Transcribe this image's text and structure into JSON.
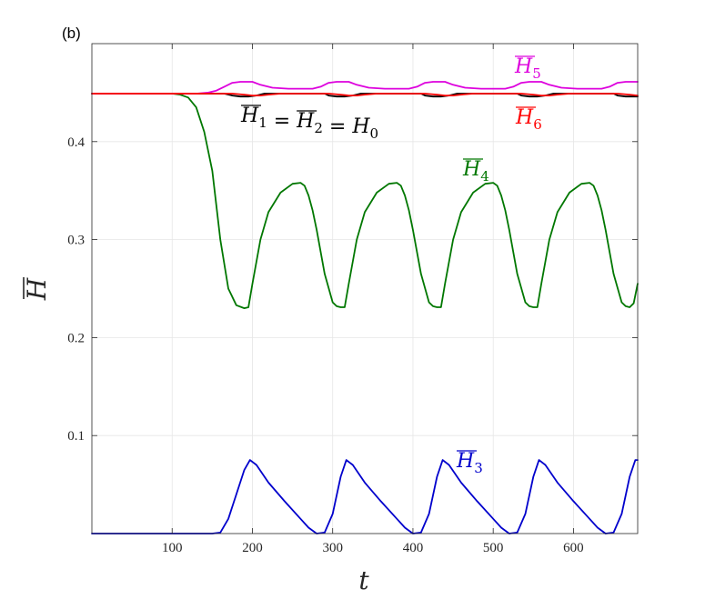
{
  "chart_data": {
    "type": "line",
    "panel_label": "(b)",
    "xlabel": "t",
    "ylabel": "H",
    "ylabel_overline": true,
    "xlim": [
      0,
      680
    ],
    "ylim": [
      0,
      0.5
    ],
    "xticks": [
      100,
      200,
      300,
      400,
      500,
      600
    ],
    "yticks": [
      0.1,
      0.2,
      0.3,
      0.4
    ],
    "xtick_labels": [
      "100",
      "200",
      "300",
      "400",
      "500",
      "600"
    ],
    "ytick_labels": [
      "0.1",
      "0.2",
      "0.3",
      "0.4"
    ],
    "grid": true,
    "series": [
      {
        "label": "H1 = H2 = H0",
        "label_parts": [
          "H",
          "1",
          " = ",
          "H",
          "2",
          " = ",
          "H",
          "0"
        ],
        "color": "#000000",
        "x": [
          0,
          165,
          175,
          185,
          195,
          205,
          215,
          230,
          250,
          270,
          290,
          295,
          305,
          315,
          325,
          335,
          350,
          370,
          390,
          410,
          415,
          425,
          435,
          445,
          455,
          470,
          490,
          510,
          530,
          535,
          545,
          555,
          565,
          575,
          590,
          610,
          630,
          650,
          655,
          665,
          675,
          680
        ],
        "y": [
          0.449,
          0.449,
          0.447,
          0.446,
          0.446,
          0.447,
          0.449,
          0.449,
          0.449,
          0.449,
          0.449,
          0.447,
          0.446,
          0.446,
          0.447,
          0.449,
          0.449,
          0.449,
          0.449,
          0.449,
          0.447,
          0.446,
          0.446,
          0.447,
          0.449,
          0.449,
          0.449,
          0.449,
          0.449,
          0.447,
          0.446,
          0.446,
          0.447,
          0.449,
          0.449,
          0.449,
          0.449,
          0.449,
          0.447,
          0.446,
          0.446,
          0.446
        ]
      },
      {
        "label": "H3",
        "label_parts": [
          "H",
          "3"
        ],
        "color": "#0000cc",
        "x": [
          0,
          150,
          160,
          170,
          180,
          190,
          197,
          205,
          220,
          240,
          260,
          270,
          280,
          290,
          300,
          310,
          317,
          325,
          340,
          360,
          380,
          390,
          400,
          410,
          420,
          430,
          437,
          445,
          460,
          480,
          500,
          510,
          520,
          530,
          540,
          550,
          557,
          565,
          580,
          600,
          620,
          630,
          640,
          650,
          660,
          670,
          677,
          680
        ],
        "y": [
          0,
          0,
          0.001,
          0.015,
          0.04,
          0.065,
          0.075,
          0.07,
          0.052,
          0.033,
          0.015,
          0.006,
          0.0,
          0.001,
          0.02,
          0.058,
          0.075,
          0.07,
          0.052,
          0.033,
          0.015,
          0.006,
          0.0,
          0.001,
          0.02,
          0.058,
          0.075,
          0.07,
          0.052,
          0.033,
          0.015,
          0.006,
          0.0,
          0.001,
          0.02,
          0.058,
          0.075,
          0.07,
          0.052,
          0.033,
          0.015,
          0.006,
          0.0,
          0.001,
          0.02,
          0.058,
          0.075,
          0.075
        ]
      },
      {
        "label": "H4",
        "label_parts": [
          "H",
          "4"
        ],
        "color": "#007700",
        "x": [
          0,
          100,
          110,
          120,
          130,
          140,
          150,
          160,
          170,
          180,
          190,
          195,
          200,
          210,
          220,
          235,
          250,
          260,
          265,
          270,
          275,
          280,
          290,
          300,
          305,
          310,
          315,
          320,
          330,
          340,
          355,
          370,
          380,
          385,
          390,
          395,
          400,
          410,
          420,
          425,
          430,
          435,
          440,
          450,
          460,
          475,
          490,
          500,
          505,
          510,
          515,
          520,
          530,
          540,
          545,
          550,
          555,
          560,
          570,
          580,
          595,
          610,
          620,
          625,
          630,
          635,
          640,
          650,
          660,
          665,
          670,
          675,
          680
        ],
        "y": [
          0.449,
          0.449,
          0.448,
          0.445,
          0.435,
          0.41,
          0.37,
          0.3,
          0.25,
          0.233,
          0.23,
          0.231,
          0.255,
          0.3,
          0.328,
          0.348,
          0.357,
          0.358,
          0.355,
          0.345,
          0.33,
          0.31,
          0.265,
          0.236,
          0.232,
          0.231,
          0.231,
          0.255,
          0.3,
          0.328,
          0.348,
          0.357,
          0.358,
          0.355,
          0.345,
          0.33,
          0.31,
          0.265,
          0.236,
          0.232,
          0.231,
          0.231,
          0.255,
          0.3,
          0.328,
          0.348,
          0.357,
          0.358,
          0.355,
          0.345,
          0.33,
          0.31,
          0.265,
          0.236,
          0.232,
          0.231,
          0.231,
          0.255,
          0.3,
          0.328,
          0.348,
          0.357,
          0.358,
          0.355,
          0.345,
          0.33,
          0.31,
          0.265,
          0.236,
          0.232,
          0.231,
          0.235,
          0.255
        ]
      },
      {
        "label": "H5",
        "label_parts": [
          "H",
          "5"
        ],
        "color": "#dd00dd",
        "x": [
          0,
          130,
          145,
          155,
          165,
          175,
          185,
          195,
          200,
          210,
          225,
          245,
          265,
          275,
          285,
          295,
          305,
          315,
          320,
          330,
          345,
          365,
          385,
          395,
          405,
          415,
          425,
          435,
          440,
          450,
          465,
          485,
          505,
          515,
          525,
          535,
          545,
          555,
          560,
          570,
          585,
          605,
          625,
          635,
          645,
          655,
          665,
          675,
          680
        ],
        "y": [
          0.449,
          0.449,
          0.45,
          0.452,
          0.456,
          0.46,
          0.461,
          0.461,
          0.461,
          0.458,
          0.455,
          0.454,
          0.454,
          0.454,
          0.456,
          0.46,
          0.461,
          0.461,
          0.461,
          0.458,
          0.455,
          0.454,
          0.454,
          0.454,
          0.456,
          0.46,
          0.461,
          0.461,
          0.461,
          0.458,
          0.455,
          0.454,
          0.454,
          0.454,
          0.456,
          0.46,
          0.461,
          0.461,
          0.461,
          0.458,
          0.455,
          0.454,
          0.454,
          0.454,
          0.456,
          0.46,
          0.461,
          0.461,
          0.461
        ]
      },
      {
        "label": "H6",
        "label_parts": [
          "H",
          "6"
        ],
        "color": "#ff0000",
        "x": [
          0,
          160,
          175,
          190,
          200,
          210,
          220,
          235,
          260,
          280,
          295,
          310,
          320,
          330,
          340,
          355,
          380,
          400,
          415,
          430,
          440,
          450,
          460,
          475,
          500,
          520,
          535,
          550,
          560,
          570,
          580,
          595,
          620,
          640,
          655,
          670,
          680
        ],
        "y": [
          0.449,
          0.449,
          0.449,
          0.448,
          0.447,
          0.447,
          0.448,
          0.449,
          0.449,
          0.449,
          0.449,
          0.448,
          0.447,
          0.447,
          0.448,
          0.449,
          0.449,
          0.449,
          0.449,
          0.448,
          0.447,
          0.447,
          0.448,
          0.449,
          0.449,
          0.449,
          0.449,
          0.448,
          0.447,
          0.447,
          0.448,
          0.449,
          0.449,
          0.449,
          0.449,
          0.448,
          0.447
        ]
      }
    ]
  }
}
